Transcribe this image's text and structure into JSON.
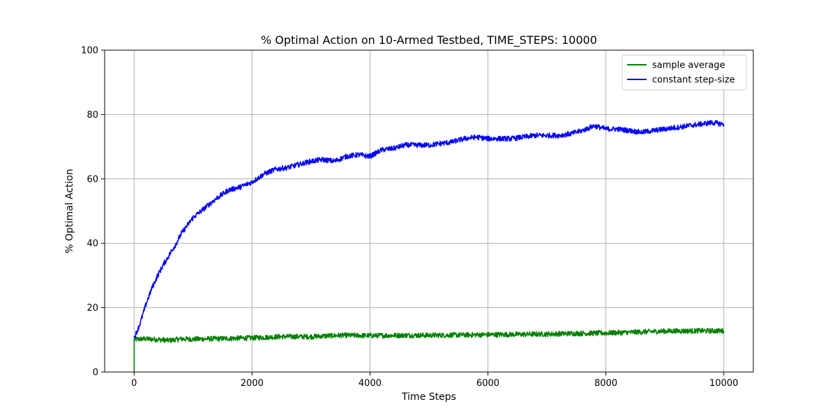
{
  "chart_data": {
    "type": "line",
    "title": "% Optimal Action on 10-Armed Testbed, TIME_STEPS: 10000",
    "xlabel": "Time Steps",
    "ylabel": "% Optimal Action",
    "xlim": [
      -500,
      10500
    ],
    "ylim": [
      0,
      100
    ],
    "xticks": [
      0,
      2000,
      4000,
      6000,
      8000,
      10000
    ],
    "yticks": [
      0,
      20,
      40,
      60,
      80,
      100
    ],
    "grid": true,
    "legend_position": "top-right",
    "series": [
      {
        "name": "sample average",
        "color": "#008000",
        "x": [
          0,
          1,
          50,
          200,
          400,
          600,
          800,
          1000,
          1500,
          2000,
          2500,
          3000,
          3500,
          4000,
          4500,
          5000,
          5500,
          6000,
          6500,
          7000,
          7500,
          8000,
          8500,
          9000,
          9500,
          10000
        ],
        "y": [
          0,
          10,
          10.2,
          10.3,
          10.1,
          9.8,
          10.3,
          10.2,
          10.4,
          10.6,
          11.0,
          11.0,
          11.4,
          11.3,
          11.4,
          11.4,
          11.5,
          11.6,
          11.7,
          11.8,
          12.0,
          12.1,
          12.4,
          12.7,
          12.8,
          12.8
        ]
      },
      {
        "name": "constant step-size",
        "color": "#0000ff",
        "x": [
          0,
          100,
          200,
          300,
          400,
          500,
          600,
          700,
          800,
          900,
          1000,
          1200,
          1400,
          1600,
          1800,
          2000,
          2200,
          2400,
          2600,
          2800,
          3000,
          3200,
          3400,
          3600,
          3800,
          4000,
          4200,
          4400,
          4600,
          4800,
          5000,
          5200,
          5400,
          5600,
          5800,
          6000,
          6200,
          6400,
          6600,
          6800,
          7000,
          7200,
          7400,
          7600,
          7800,
          8000,
          8200,
          8400,
          8600,
          8800,
          9000,
          9200,
          9400,
          9600,
          9800,
          10000
        ],
        "y": [
          10.5,
          15,
          21,
          26,
          30,
          33.5,
          36.5,
          39.5,
          43,
          45.5,
          48,
          51,
          54,
          56.5,
          57.5,
          59,
          61.5,
          63,
          63.5,
          64.5,
          65.5,
          66,
          65.5,
          67,
          67.5,
          67,
          69,
          69.5,
          70.5,
          70.5,
          70.5,
          71,
          71.5,
          72.5,
          73,
          72.5,
          72.5,
          72.5,
          73,
          73.5,
          73.5,
          73.5,
          74,
          75,
          76.5,
          75.5,
          75.5,
          75,
          74.5,
          75,
          75.5,
          76,
          76.5,
          77,
          77.5,
          77
        ]
      }
    ]
  }
}
